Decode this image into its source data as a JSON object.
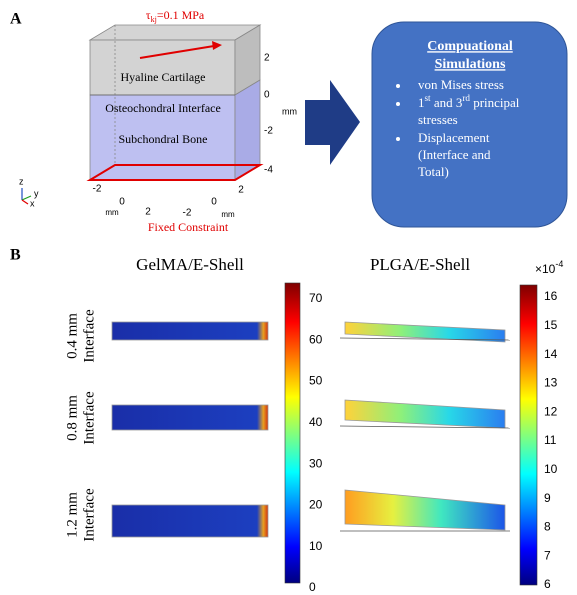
{
  "panel_a": {
    "label": "A",
    "load": {
      "symbol": "τ",
      "subscript": "kj",
      "value": "=0.1 MPa"
    },
    "layers": [
      "Hyaline Cartilage",
      "Osteochondral Interface",
      "Subchondral Bone"
    ],
    "z_axis_ticks": [
      "2",
      "0",
      "-2",
      "-4"
    ],
    "z_axis_unit": "mm",
    "x_axis_ticks": [
      "-2",
      "0",
      "2"
    ],
    "x_axis_unit": "mm",
    "y_axis_ticks": [
      "-2",
      "0",
      "2"
    ],
    "y_axis_unit": "mm",
    "boundary": "Fixed Constraint",
    "triad": [
      "z",
      "y",
      "x"
    ],
    "box": {
      "title": [
        "Compuational",
        "Simulations"
      ],
      "items": [
        [
          [
            {
              "text": "von Mises stress"
            }
          ]
        ],
        [
          [
            {
              "text": "1"
            },
            {
              "text": "st",
              "sup": true
            },
            {
              "text": " and 3"
            },
            {
              "text": "rd",
              "sup": true
            },
            {
              "text": " principal"
            }
          ],
          [
            {
              "text": "stresses"
            }
          ]
        ],
        [
          [
            {
              "text": "Displacement"
            }
          ],
          [
            {
              "text": "(Interface and"
            }
          ],
          [
            {
              "text": "Total)"
            }
          ]
        ]
      ]
    }
  },
  "panel_b": {
    "label": "B",
    "columns": [
      "GelMA/E-Shell",
      "PLGA/E-Shell"
    ],
    "rows": [
      [
        "0.4 mm",
        "Interface"
      ],
      [
        "0.8 mm",
        "Interface"
      ],
      [
        "1.2 mm",
        "Interface"
      ]
    ],
    "colorbars": [
      {
        "ticks": [
          0,
          10,
          20,
          30,
          40,
          50,
          60,
          70
        ]
      },
      {
        "ticks": [
          6,
          7,
          8,
          9,
          10,
          11,
          12,
          13,
          14,
          15,
          16
        ],
        "multiplier": {
          "base": "×10",
          "exponent": "-4"
        }
      }
    ]
  }
}
